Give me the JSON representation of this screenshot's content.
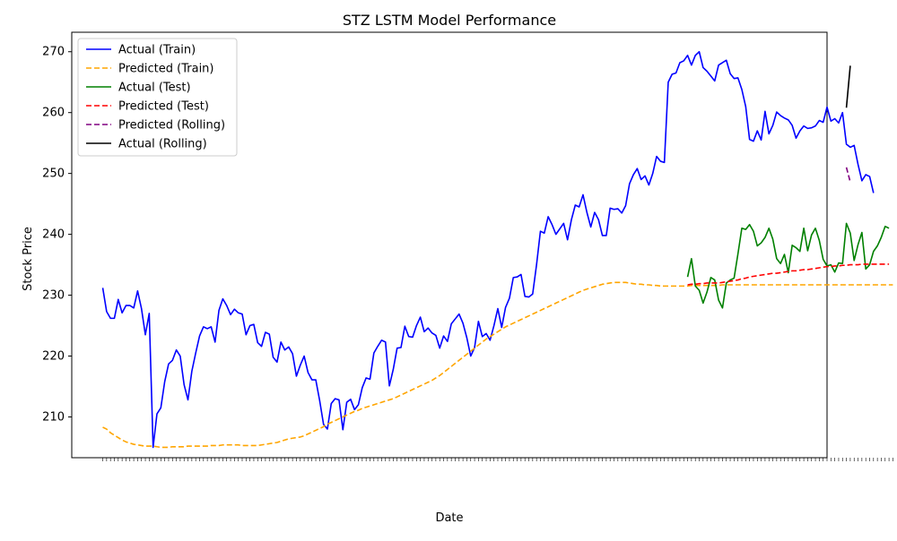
{
  "chart_data": {
    "type": "line",
    "title": "STZ LSTM Model Performance",
    "xlabel": "Date",
    "ylabel": "Stock Price",
    "ylim": [
      203.3,
      273.2
    ],
    "xlim": [
      -8,
      187
    ],
    "yticks": [
      210,
      220,
      230,
      240,
      250,
      260,
      270
    ],
    "grid": false,
    "legend_position": "top-left",
    "colors": {
      "actual_train": "#0000ff",
      "predicted_train": "#ffa500",
      "actual_test": "#008000",
      "predicted_test": "#ff0000",
      "predicted_rolling": "#800080",
      "actual_rolling": "#000000"
    },
    "series": [
      {
        "name": "Actual (Train)",
        "style": "solid",
        "color": "#0000ff",
        "x_start": 0,
        "values": [
          231.2,
          227.3,
          226.2,
          226.2,
          229.3,
          227.1,
          228.3,
          228.3,
          227.9,
          230.7,
          227.8,
          223.5,
          227.0,
          205.0,
          210.5,
          211.5,
          215.8,
          218.7,
          219.3,
          221.0,
          220.0,
          215.3,
          212.8,
          217.5,
          220.5,
          223.3,
          224.8,
          224.5,
          224.8,
          222.3,
          227.5,
          229.4,
          228.3,
          226.8,
          227.7,
          227.1,
          226.9,
          223.5,
          225.0,
          225.2,
          222.2,
          221.6,
          223.9,
          223.6,
          219.8,
          219.0,
          222.3,
          221.0,
          221.5,
          220.4,
          216.7,
          218.5,
          220.0,
          217.3,
          216.1,
          216.1,
          212.7,
          208.8,
          208.0,
          212.2,
          213.0,
          212.8,
          207.9,
          212.4,
          212.9,
          211.2,
          212.0,
          214.8,
          216.4,
          216.2,
          220.5,
          221.6,
          222.6,
          222.3,
          215.1,
          217.8,
          221.3,
          221.4,
          224.9,
          223.2,
          223.1,
          225.0,
          226.4,
          224.0,
          224.6,
          223.8,
          223.4,
          221.3,
          223.3,
          222.4,
          225.3,
          226.1,
          226.9,
          225.4,
          223.0,
          220.0,
          221.4,
          225.7,
          223.2,
          223.7,
          222.6,
          225.0,
          227.8,
          224.7,
          228.0,
          229.5,
          232.9,
          233.0,
          233.4,
          229.8,
          229.7,
          230.2,
          235.0,
          240.5,
          240.2,
          242.9,
          241.6,
          240.0,
          240.9,
          241.8,
          239.1,
          242.4,
          244.8,
          244.5,
          246.5,
          243.6,
          241.2,
          243.6,
          242.4,
          239.8,
          239.8,
          244.3,
          244.1,
          244.2,
          243.5,
          244.7,
          248.3,
          249.8,
          250.8,
          249.0,
          249.6,
          248.1,
          250.0,
          252.8,
          252.0,
          251.8,
          265.0,
          266.3,
          266.5,
          268.2,
          268.5,
          269.4,
          267.8,
          269.4,
          270.0,
          267.4,
          266.8,
          266.0,
          265.2,
          267.8,
          268.2,
          268.6,
          266.4,
          265.6,
          265.7,
          263.8,
          261.0,
          255.6,
          255.3,
          257.0,
          255.5,
          260.2,
          256.5,
          257.9,
          260.1,
          259.5,
          259.1,
          258.8,
          257.9,
          255.8,
          257.0,
          257.8,
          257.4,
          257.5,
          257.8,
          258.7,
          258.4,
          260.9,
          258.6,
          259.0,
          258.3,
          260.0,
          254.8,
          254.3,
          254.6,
          251.5,
          248.8,
          249.8,
          249.5,
          246.8
        ]
      },
      {
        "name": "Predicted (Train)",
        "style": "dashed",
        "color": "#ffa500",
        "x_start": 0,
        "values": [
          208.3,
          208.0,
          207.4,
          207.0,
          206.6,
          206.2,
          205.9,
          205.7,
          205.5,
          205.4,
          205.3,
          205.2,
          205.2,
          205.2,
          205.1,
          205.0,
          205.0,
          205.0,
          205.1,
          205.1,
          205.1,
          205.1,
          205.2,
          205.2,
          205.2,
          205.2,
          205.2,
          205.2,
          205.3,
          205.3,
          205.3,
          205.4,
          205.4,
          205.4,
          205.4,
          205.4,
          205.3,
          205.3,
          205.3,
          205.3,
          205.3,
          205.4,
          205.5,
          205.6,
          205.7,
          205.8,
          206.0,
          206.2,
          206.4,
          206.5,
          206.6,
          206.7,
          206.9,
          207.2,
          207.5,
          207.8,
          208.1,
          208.4,
          208.8,
          209.1,
          209.4,
          209.7,
          210.0,
          210.3,
          210.6,
          210.9,
          211.1,
          211.4,
          211.6,
          211.8,
          212.0,
          212.2,
          212.4,
          212.6,
          212.8,
          213.0,
          213.3,
          213.6,
          213.9,
          214.2,
          214.5,
          214.8,
          215.1,
          215.4,
          215.7,
          216.0,
          216.4,
          216.8,
          217.3,
          217.8,
          218.3,
          218.8,
          219.3,
          219.8,
          220.3,
          220.8,
          221.3,
          221.8,
          222.3,
          222.8,
          223.2,
          223.6,
          224.0,
          224.4,
          224.8,
          225.1,
          225.4,
          225.7,
          226.0,
          226.3,
          226.6,
          226.9,
          227.2,
          227.5,
          227.8,
          228.1,
          228.4,
          228.7,
          229.0,
          229.3,
          229.6,
          229.9,
          230.2,
          230.5,
          230.8,
          231.0,
          231.2,
          231.4,
          231.6,
          231.8,
          231.9,
          232.0,
          232.1,
          232.1,
          232.1,
          232.1,
          232.0,
          231.9,
          231.8,
          231.8,
          231.7,
          231.7,
          231.6,
          231.6,
          231.5,
          231.5,
          231.5,
          231.5,
          231.5,
          231.5,
          231.5,
          231.5,
          231.6,
          231.6,
          231.6,
          231.6,
          231.6,
          231.6,
          231.6,
          231.6,
          231.7,
          231.7,
          231.7,
          231.7,
          231.7,
          231.7,
          231.7,
          231.7,
          231.7,
          231.7,
          231.7,
          231.7,
          231.7,
          231.7,
          231.7,
          231.7,
          231.7,
          231.7,
          231.7,
          231.7,
          231.7,
          231.7,
          231.7,
          231.7,
          231.7,
          231.7,
          231.7,
          231.7,
          231.7,
          231.7,
          231.7,
          231.7,
          231.7,
          231.7,
          231.7,
          231.7,
          231.7,
          231.7,
          231.7,
          231.7,
          231.7,
          231.7,
          231.7,
          231.7,
          231.7
        ]
      },
      {
        "name": "Actual (Test)",
        "style": "solid",
        "color": "#008000",
        "x_start": 151,
        "values": [
          233.0,
          236.0,
          231.5,
          230.8,
          228.7,
          230.5,
          232.9,
          232.5,
          229.2,
          227.9,
          232.0,
          232.5,
          232.8,
          236.8,
          241.0,
          240.8,
          241.6,
          240.5,
          238.1,
          238.6,
          239.5,
          241.0,
          239.2,
          236.0,
          235.2,
          236.7,
          233.7,
          238.2,
          237.8,
          237.2,
          241.0,
          237.3,
          239.9,
          241.0,
          239.0,
          235.9,
          234.8,
          235.0,
          233.8,
          235.3,
          235.2,
          241.8,
          240.2,
          235.7,
          238.3,
          240.3,
          234.3,
          235.0,
          237.2,
          238.1,
          239.5,
          241.3,
          241.0
        ]
      },
      {
        "name": "Predicted (Test)",
        "style": "dashed",
        "color": "#ff0000",
        "x_start": 151,
        "values": [
          231.7,
          231.8,
          231.8,
          231.9,
          231.9,
          232.0,
          232.0,
          232.0,
          232.0,
          232.1,
          232.2,
          232.3,
          232.4,
          232.5,
          232.7,
          232.8,
          233.0,
          233.1,
          233.2,
          233.3,
          233.4,
          233.5,
          233.6,
          233.6,
          233.7,
          233.8,
          233.9,
          234.0,
          234.0,
          234.1,
          234.2,
          234.2,
          234.3,
          234.4,
          234.5,
          234.6,
          234.7,
          234.7,
          234.8,
          234.8,
          234.9,
          234.9,
          235.0,
          235.0,
          235.0,
          235.1,
          235.1,
          235.1,
          235.1,
          235.1,
          235.1,
          235.1,
          235.1
        ]
      },
      {
        "name": "Predicted (Rolling)",
        "style": "dashed",
        "color": "#800080",
        "x_start": 192,
        "values": [
          251.0,
          248.6
        ]
      },
      {
        "name": "Actual (Rolling)",
        "style": "solid",
        "color": "#000000",
        "x_start": 192,
        "values": [
          260.8,
          267.7
        ]
      }
    ]
  }
}
